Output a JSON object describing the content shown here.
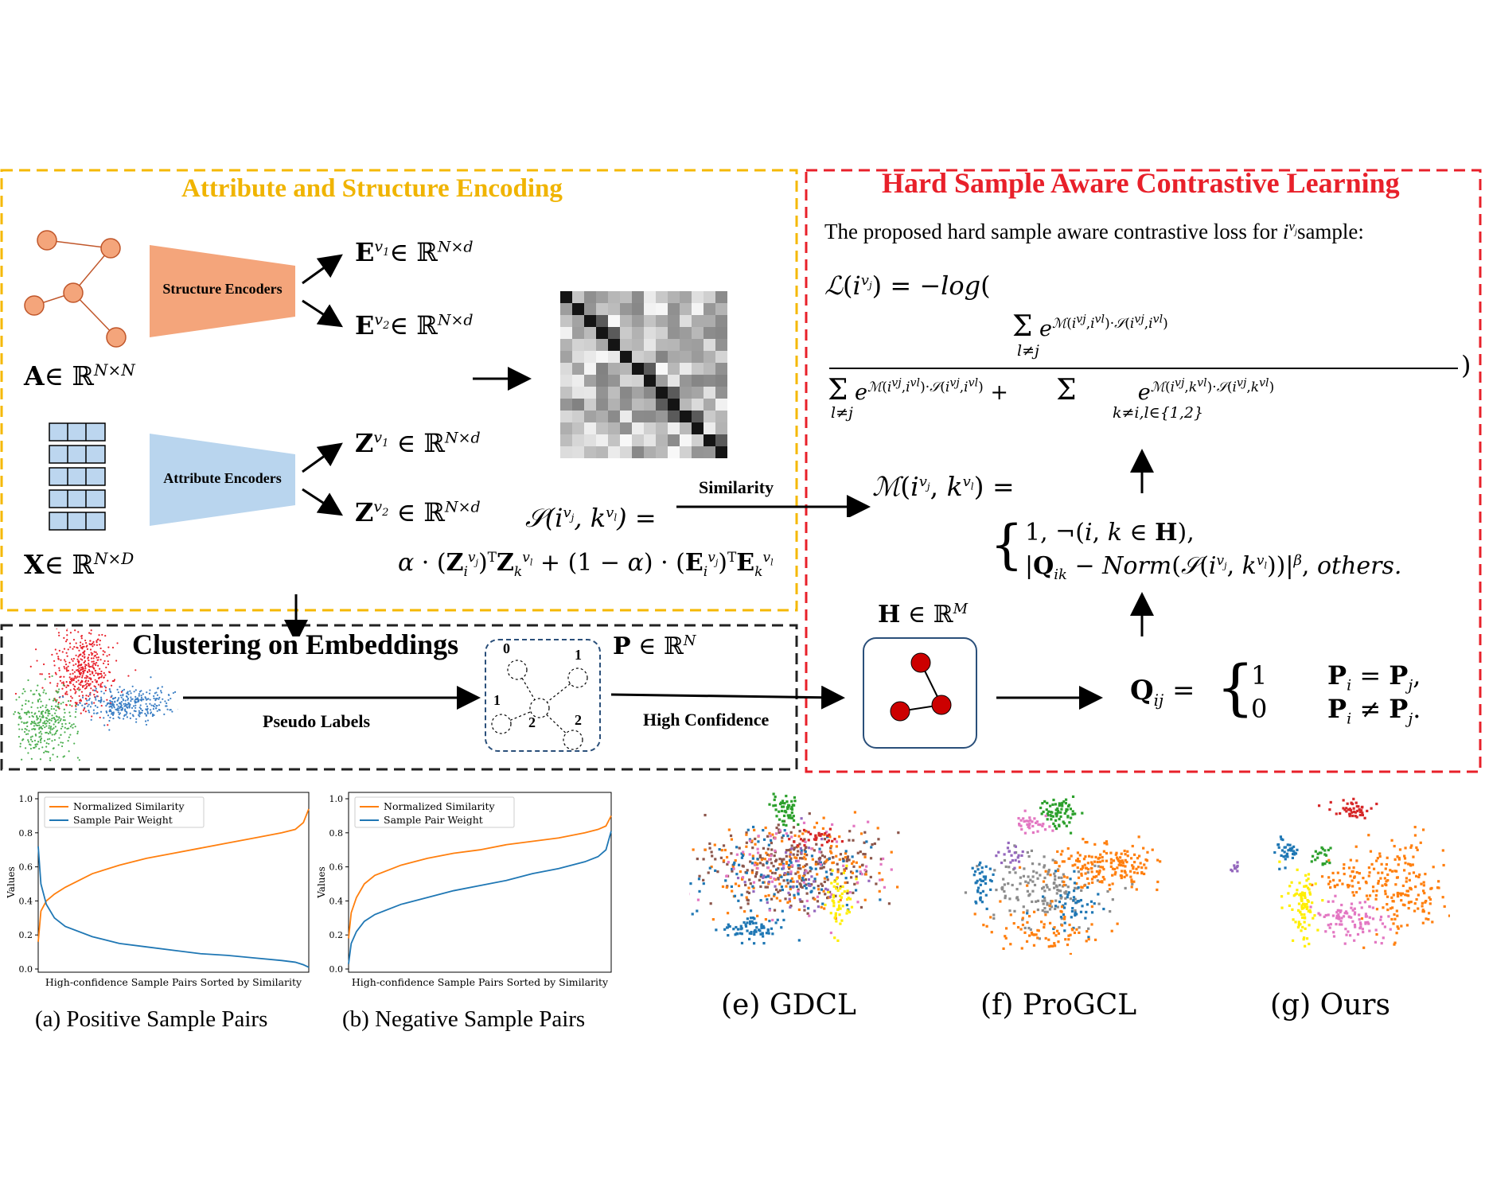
{
  "attr": {
    "title": "Attribute and Structure Encoding",
    "structure_encoders": "Structure Encoders",
    "attribute_encoders": "Attribute Encoders",
    "a_label": "A∈ ℝ^{N×N}",
    "x_label": "X∈ ℝ^{N×D}",
    "e1": "E^{v1}∈ ℝ^{N×d}",
    "e2": "E^{v2}∈ ℝ^{N×d}",
    "z1": "Z^{v1} ∈ ℝ^{N×d}",
    "z2": "Z^{v2} ∈ ℝ^{N×d}",
    "similarity_lhs": "S(i^{vj}, k^{vl}) =",
    "similarity_rhs": "α · (Z_i^{vj})^T Z_k^{vl} + (1 − α) · (E_i^{vj})^T E_k^{vl}",
    "similarity_arrow_label": "Similarity"
  },
  "hard": {
    "title": "Hard Sample Aware Contrastive Learning",
    "intro": "The proposed hard sample aware contrastive loss for i^{vj}sample:",
    "loss_lhs": "L(i^{vj}) = −log(",
    "loss_num": "Σ_{l≠j} e^{M(i^{vj},i^{vl})·S(i^{vj},i^{vl})}",
    "loss_den": "Σ_{l≠j} e^{M(i^{vj},i^{vl})·S(i^{vj},i^{vl})} + Σ_{k≠i,l∈{1,2}} e^{M(i^{vj},k^{vl})·S(i^{vj},k^{vl})}",
    "m_lhs": "M(i^{vj}, k^{vl}) =",
    "m_case1": "1, ¬(i, k ∈ H),",
    "m_case2": "|Q_ik − Norm(S(i^{vj}, k^{vl}))|^β, others.",
    "h_label": "H ∈ ℝ^M",
    "q_lhs": "Q_ij =",
    "q_case1_val": "1",
    "q_case1_cond": "P_i = P_j,",
    "q_case2_val": "0",
    "q_case2_cond": "P_i ≠ P_j."
  },
  "cluster": {
    "title": "Clustering on Embeddings",
    "pseudo_labels": "Pseudo Labels",
    "p_label": "P ∈ ℝ^N",
    "high_confidence": "High Confidence",
    "node_labels": [
      "0",
      "1",
      "1",
      "2",
      "2"
    ]
  },
  "chart_data": [
    {
      "type": "line",
      "caption": "(a) Positive Sample Pairs",
      "xlabel": "High-confidence Sample Pairs Sorted by Similarity",
      "ylabel": "Values",
      "ylim": [
        0.0,
        1.0
      ],
      "yticks": [
        "0.0",
        "0.2",
        "0.4",
        "0.6",
        "0.8",
        "1.0"
      ],
      "legend_position": "upper-left",
      "x": [
        0,
        0.01,
        0.03,
        0.06,
        0.1,
        0.2,
        0.3,
        0.4,
        0.5,
        0.6,
        0.7,
        0.8,
        0.9,
        0.95,
        0.98,
        1.0
      ],
      "series": [
        {
          "name": "Normalized  Similarity",
          "color": "#ff7f0e",
          "values": [
            0.16,
            0.34,
            0.4,
            0.44,
            0.48,
            0.56,
            0.61,
            0.65,
            0.68,
            0.71,
            0.74,
            0.77,
            0.8,
            0.82,
            0.86,
            0.94
          ]
        },
        {
          "name": "Sample   Pair   Weight",
          "color": "#1f77b4",
          "values": [
            0.72,
            0.5,
            0.38,
            0.3,
            0.25,
            0.19,
            0.15,
            0.13,
            0.11,
            0.09,
            0.08,
            0.065,
            0.05,
            0.04,
            0.025,
            0.01
          ]
        }
      ]
    },
    {
      "type": "line",
      "caption": "(b) Negative Sample Pairs",
      "xlabel": "High-confidence Sample Pairs Sorted by Similarity",
      "ylabel": "Values",
      "ylim": [
        0.0,
        1.0
      ],
      "yticks": [
        "0.0",
        "0.2",
        "0.4",
        "0.6",
        "0.8",
        "1.0"
      ],
      "legend_position": "upper-left",
      "x": [
        0,
        0.01,
        0.03,
        0.06,
        0.1,
        0.2,
        0.3,
        0.4,
        0.5,
        0.6,
        0.7,
        0.8,
        0.9,
        0.95,
        0.98,
        1.0
      ],
      "series": [
        {
          "name": "Normalized  Similarity",
          "color": "#ff7f0e",
          "values": [
            0.18,
            0.33,
            0.42,
            0.5,
            0.55,
            0.61,
            0.65,
            0.68,
            0.7,
            0.73,
            0.75,
            0.77,
            0.8,
            0.82,
            0.84,
            0.9
          ]
        },
        {
          "name": "Sample   Pair   Weight",
          "color": "#1f77b4",
          "values": [
            0.03,
            0.15,
            0.22,
            0.28,
            0.32,
            0.38,
            0.42,
            0.46,
            0.49,
            0.52,
            0.56,
            0.59,
            0.63,
            0.66,
            0.7,
            0.81
          ]
        }
      ]
    }
  ],
  "tsne": {
    "captions": [
      "(e) GDCL",
      "(f) ProGCL",
      "(g) Ours"
    ]
  },
  "colors": {
    "yellow_border": "#f5b800",
    "red_border": "#e8202a",
    "structure_encoder": "#f4a57b",
    "attribute_encoder": "#b9d5ee",
    "node_fill": "#f4a57b",
    "node_stroke": "#c0562a",
    "grid_cell": "#bcd6ef",
    "h_node": "#cc0000"
  }
}
